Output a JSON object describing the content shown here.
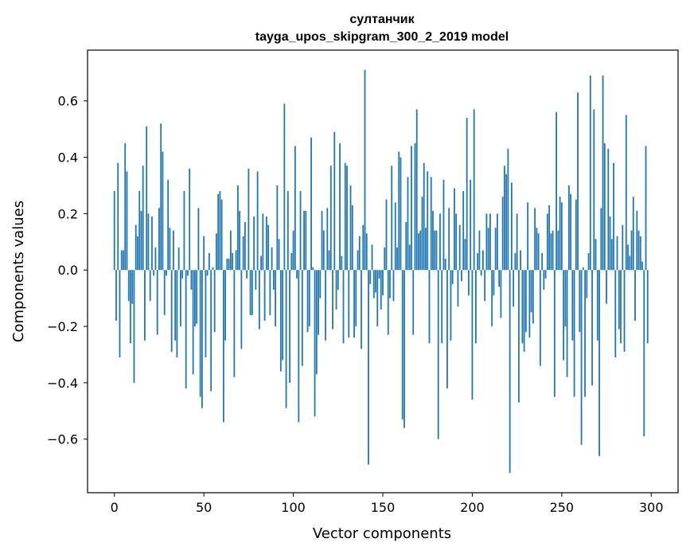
{
  "chart_data": {
    "type": "bar",
    "title": "султанчик",
    "subtitle": "tayga_upos_skipgram_300_2_2019 model",
    "xlabel": "Vector components",
    "ylabel": "Components values",
    "xlim": [
      -15,
      315
    ],
    "ylim": [
      -0.79,
      0.78
    ],
    "xticks": [
      0,
      50,
      100,
      150,
      200,
      250,
      300
    ],
    "yticks": [
      -0.6,
      -0.4,
      -0.2,
      0.0,
      0.2,
      0.4,
      0.6
    ],
    "ytick_labels": [
      "−0.6",
      "−0.4",
      "−0.2",
      "0.0",
      "0.2",
      "0.4",
      "0.6"
    ],
    "bar_color": "#1f77b4",
    "grid": false,
    "values": [
      0.28,
      -0.18,
      0.38,
      -0.31,
      0.07,
      0.07,
      0.45,
      0.35,
      -0.11,
      -0.26,
      -0.12,
      -0.4,
      0.16,
      0.12,
      0.28,
      0.21,
      0.37,
      -0.25,
      0.51,
      0.2,
      -0.11,
      0.19,
      -0.02,
      0.08,
      -0.23,
      0.22,
      0.52,
      0.42,
      -0.16,
      -0.02,
      0.32,
      0.15,
      -0.29,
      0.14,
      -0.25,
      -0.31,
      0.08,
      -0.2,
      -0.03,
      0.28,
      -0.42,
      -0.02,
      0.36,
      -0.07,
      -0.37,
      -0.2,
      -0.19,
      0.22,
      -0.45,
      -0.49,
      0.12,
      -0.31,
      -0.02,
      0.06,
      -0.43,
      0.01,
      -0.22,
      0.13,
      0.27,
      0.28,
      0.25,
      -0.54,
      -0.25,
      0.04,
      0.04,
      0.14,
      0.06,
      -0.38,
      0.07,
      0.3,
      0.21,
      -0.28,
      0.12,
      0.17,
      -0.03,
      0.36,
      -0.16,
      -0.16,
      0.19,
      -0.07,
      0.35,
      -0.21,
      0.05,
      0.2,
      -0.18,
      0.19,
      0.16,
      -0.16,
      0.08,
      -0.07,
      -0.2,
      0.3,
      0.11,
      -0.36,
      -0.32,
      0.59,
      -0.49,
      0.28,
      -0.4,
      0.06,
      0.14,
      0.44,
      -0.03,
      -0.54,
      0.28,
      -0.34,
      0.21,
      0.21,
      -0.22,
      -0.2,
      0.47,
      0.01,
      -0.52,
      -0.37,
      -0.23,
      -0.1,
      0.21,
      0.14,
      -0.25,
      0.22,
      0.07,
      0.37,
      -0.21,
      0.49,
      -0.14,
      -0.07,
      0.45,
      0.05,
      -0.26,
      0.38,
      0.37,
      -0.24,
      0.3,
      0.23,
      -0.24,
      -0.2,
      0.07,
      0.12,
      -0.28,
      0.16,
      0.71,
      0.13,
      -0.69,
      -0.05,
      0.09,
      -0.1,
      -0.08,
      -0.2,
      -0.03,
      -0.14,
      -0.09,
      0.08,
      0.25,
      -0.23,
      -0.1,
      0.37,
      -0.11,
      0.24,
      0.08,
      0.42,
      0.4,
      -0.53,
      -0.56,
      0.17,
      0.33,
      0.09,
      0.44,
      -0.23,
      0.45,
      0.57,
      0.13,
      0.14,
      0.26,
      0.38,
      0.15,
      0.35,
      -0.26,
      0.33,
      0.21,
      0.14,
      0.14,
      -0.6,
      0.2,
      -0.26,
      0.32,
      0.04,
      -0.42,
      0.22,
      -0.25,
      -0.05,
      0.29,
      0.2,
      -0.13,
      0.16,
      -0.04,
      0.28,
      0.11,
      0.54,
      -0.09,
      0.32,
      -0.46,
      0.57,
      -0.26,
      0.06,
      0.14,
      -0.02,
      0.07,
      -0.11,
      0.2,
      0.15,
      0.2,
      -0.2,
      -0.09,
      0.15,
      0.2,
      -0.06,
      -0.17,
      0.26,
      0.37,
      0.34,
      0.43,
      -0.72,
      0.31,
      -0.13,
      0.06,
      0.2,
      -0.47,
      0.07,
      -0.26,
      -0.29,
      -0.22,
      0.24,
      -0.24,
      -0.15,
      -0.19,
      0.22,
      0.15,
      0.13,
      -0.34,
      0.06,
      -0.07,
      -0.03,
      0.2,
      0.23,
      0.13,
      0.14,
      -0.45,
      0.56,
      0.14,
      0.26,
      0.24,
      -0.32,
      -0.2,
      -0.38,
      0.3,
      0.27,
      -0.25,
      -0.45,
      0.25,
      0.63,
      -0.22,
      -0.62,
      0.01,
      -0.45,
      -0.1,
      0.06,
      0.69,
      -0.41,
      0.57,
      0.11,
      -0.25,
      -0.66,
      0.22,
      0.69,
      0.45,
      -0.12,
      0.43,
      0.19,
      0.11,
      0.38,
      -0.31,
      0.12,
      -0.21,
      -0.26,
      0.16,
      -0.29,
      0.55,
      0.09,
      0.05,
      0.14,
      0.26,
      -0.18,
      0.21,
      0.14,
      0.12,
      0.03,
      -0.59,
      0.44,
      -0.26
    ]
  }
}
